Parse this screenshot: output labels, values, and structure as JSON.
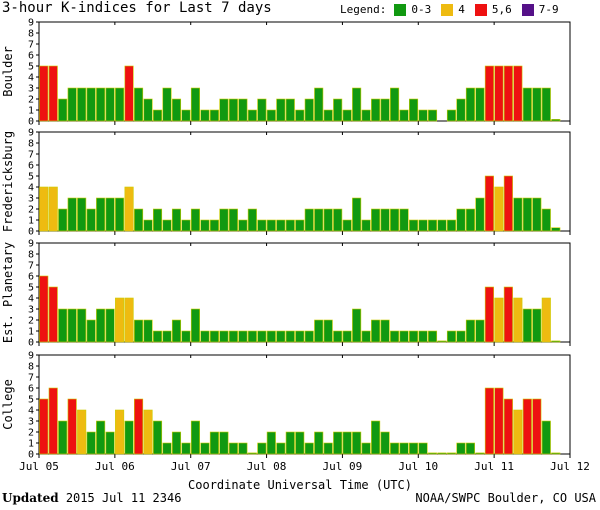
{
  "header": {
    "title": "3-hour K-indices for Last 7 days",
    "legend_label": "Legend:",
    "legend": [
      {
        "label": "0-3",
        "color": "#119911"
      },
      {
        "label": "4",
        "color": "#eebb11"
      },
      {
        "label": "5,6",
        "color": "#ee1111"
      },
      {
        "label": "7-9",
        "color": "#551188"
      }
    ]
  },
  "footer": {
    "updated_label": "Updated",
    "updated_value": "2015 Jul 11 2346",
    "source": "NOAA/SWPC Boulder, CO USA"
  },
  "chart_data": [
    {
      "type": "bar",
      "title": "Boulder",
      "x_tick_labels": [
        "Jul 05",
        "Jul 06",
        "Jul 07",
        "Jul 08",
        "Jul 09",
        "Jul 10",
        "Jul 11",
        "Jul 12"
      ],
      "xlabel": "Coordinate Universal Time (UTC)",
      "ylim": [
        0,
        9
      ],
      "y_ticks": [
        0,
        1,
        2,
        3,
        4,
        5,
        6,
        7,
        8,
        9
      ],
      "values": [
        5,
        5,
        2,
        3,
        3,
        3,
        3,
        3,
        3,
        5,
        3,
        2,
        1,
        3,
        2,
        1,
        3,
        1,
        1,
        2,
        2,
        2,
        1,
        2,
        1,
        2,
        2,
        1,
        2,
        3,
        1,
        2,
        1,
        3,
        1,
        2,
        2,
        3,
        1,
        2,
        1,
        1,
        0,
        1,
        2,
        3,
        3,
        5,
        5,
        5,
        5,
        3,
        3,
        3,
        0.15
      ]
    },
    {
      "type": "bar",
      "title": "Fredericksburg",
      "x_tick_labels": [
        "Jul 05",
        "Jul 06",
        "Jul 07",
        "Jul 08",
        "Jul 09",
        "Jul 10",
        "Jul 11",
        "Jul 12"
      ],
      "xlabel": "Coordinate Universal Time (UTC)",
      "ylim": [
        0,
        9
      ],
      "y_ticks": [
        0,
        1,
        2,
        3,
        4,
        5,
        6,
        7,
        8,
        9
      ],
      "values": [
        4,
        4,
        2,
        3,
        3,
        2,
        3,
        3,
        3,
        4,
        2,
        1,
        2,
        1,
        2,
        1,
        2,
        1,
        1,
        2,
        2,
        1,
        2,
        1,
        1,
        1,
        1,
        1,
        2,
        2,
        2,
        2,
        1,
        3,
        1,
        2,
        2,
        2,
        2,
        1,
        1,
        1,
        1,
        1,
        2,
        2,
        3,
        5,
        4,
        5,
        3,
        3,
        3,
        2,
        0.3
      ]
    },
    {
      "type": "bar",
      "title": "Est. Planetary",
      "x_tick_labels": [
        "Jul 05",
        "Jul 06",
        "Jul 07",
        "Jul 08",
        "Jul 09",
        "Jul 10",
        "Jul 11",
        "Jul 12"
      ],
      "xlabel": "Coordinate Universal Time (UTC)",
      "ylim": [
        0,
        9
      ],
      "y_ticks": [
        0,
        1,
        2,
        3,
        4,
        5,
        6,
        7,
        8,
        9
      ],
      "values": [
        6,
        5,
        3,
        3,
        3,
        2,
        3,
        3,
        4,
        4,
        2,
        2,
        1,
        1,
        2,
        1,
        3,
        1,
        1,
        1,
        1,
        1,
        1,
        1,
        1,
        1,
        1,
        1,
        1,
        2,
        2,
        1,
        1,
        3,
        1,
        2,
        2,
        1,
        1,
        1,
        1,
        1,
        0.1,
        1,
        1,
        2,
        2,
        5,
        4,
        5,
        4,
        3,
        3,
        4,
        0.1
      ]
    },
    {
      "type": "bar",
      "title": "College",
      "x_tick_labels": [
        "Jul 05",
        "Jul 06",
        "Jul 07",
        "Jul 08",
        "Jul 09",
        "Jul 10",
        "Jul 11",
        "Jul 12"
      ],
      "xlabel": "Coordinate Universal Time (UTC)",
      "ylim": [
        0,
        9
      ],
      "y_ticks": [
        0,
        1,
        2,
        3,
        4,
        5,
        6,
        7,
        8,
        9
      ],
      "values": [
        5,
        6,
        3,
        5,
        4,
        2,
        3,
        2,
        4,
        3,
        5,
        4,
        3,
        1,
        2,
        1,
        3,
        1,
        2,
        2,
        1,
        1,
        0.1,
        1,
        2,
        1,
        2,
        2,
        1,
        2,
        1,
        2,
        2,
        2,
        1,
        3,
        2,
        1,
        1,
        1,
        1,
        0.1,
        0.1,
        0.1,
        1,
        1,
        0.1,
        6,
        6,
        5,
        4,
        5,
        5,
        3,
        0.1
      ]
    }
  ]
}
